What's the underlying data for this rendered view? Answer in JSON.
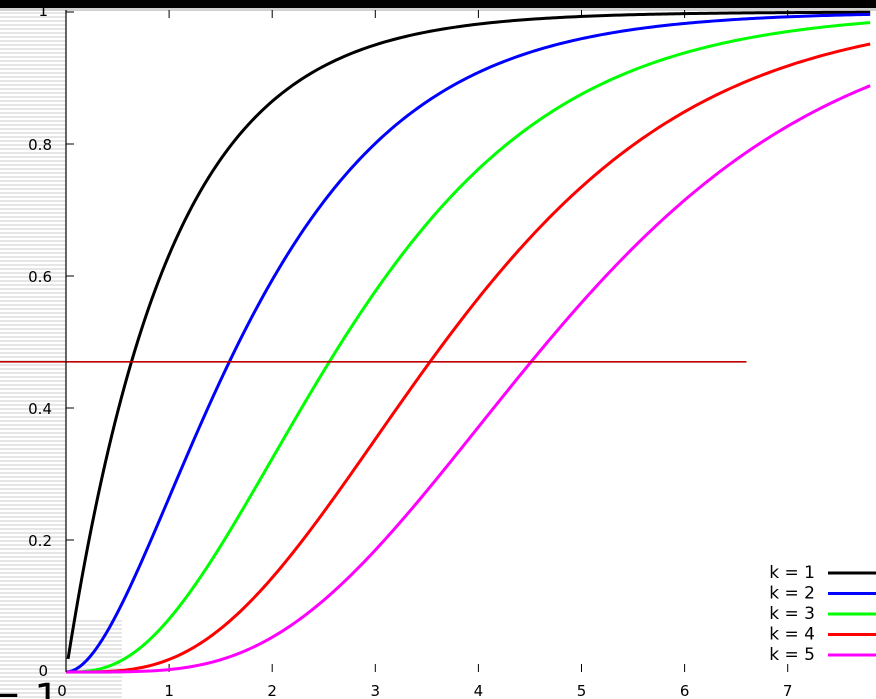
{
  "chart_data": {
    "type": "line",
    "title": "",
    "xlabel": "",
    "ylabel": "",
    "xlim": [
      0,
      7.8
    ],
    "ylim": [
      0,
      1
    ],
    "grid": false,
    "legend_position": "bottom-right",
    "x_ticks": [
      "0",
      "1",
      "2",
      "3",
      "4",
      "5",
      "6",
      "7"
    ],
    "y_ticks": [
      "0",
      "0.2",
      "0.4",
      "0.6",
      "0.8",
      "1"
    ],
    "series": [
      {
        "name": "k = 1",
        "color": "#000000",
        "k": 1,
        "x": [
          0.02,
          0.25,
          0.5,
          1,
          1.5,
          2,
          3,
          4,
          5,
          6,
          7,
          7.8
        ],
        "y": [
          0.08,
          0.39,
          0.52,
          0.68,
          0.78,
          0.84,
          0.91,
          0.95,
          0.97,
          0.98,
          0.99,
          0.995
        ]
      },
      {
        "name": "k = 2",
        "color": "#0000ff",
        "k": 2,
        "x": [
          0,
          0.5,
          1,
          1.5,
          2,
          3,
          4,
          5,
          6,
          7,
          7.8
        ],
        "y": [
          0,
          0.22,
          0.39,
          0.53,
          0.63,
          0.78,
          0.86,
          0.92,
          0.95,
          0.97,
          0.98
        ]
      },
      {
        "name": "k = 3",
        "color": "#00ff00",
        "k": 3,
        "x": [
          0,
          0.5,
          1,
          1.5,
          2,
          3,
          4,
          5,
          6,
          7,
          7.8
        ],
        "y": [
          0,
          0.08,
          0.2,
          0.32,
          0.43,
          0.61,
          0.74,
          0.83,
          0.89,
          0.93,
          0.95
        ]
      },
      {
        "name": "k = 4",
        "color": "#ff0000",
        "k": 4,
        "x": [
          0,
          0.5,
          1,
          1.5,
          2,
          3,
          4,
          5,
          6,
          7,
          7.8
        ],
        "y": [
          0,
          0.02,
          0.08,
          0.17,
          0.26,
          0.44,
          0.59,
          0.71,
          0.8,
          0.87,
          0.9
        ]
      },
      {
        "name": "k = 5",
        "color": "#ff00ff",
        "k": 5,
        "x": [
          0,
          0.5,
          1,
          1.5,
          2,
          3,
          4,
          5,
          6,
          7,
          7.8
        ],
        "y": [
          0,
          0.005,
          0.03,
          0.08,
          0.14,
          0.29,
          0.44,
          0.57,
          0.68,
          0.77,
          0.83
        ]
      }
    ],
    "reference_line": {
      "y": 0.47,
      "x_start": -0.3,
      "x_end": 6.6,
      "color": "#c00000"
    },
    "stray_text": "= 1"
  }
}
